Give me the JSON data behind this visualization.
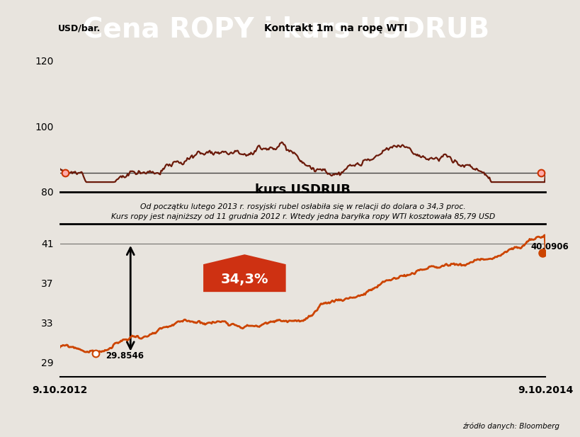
{
  "title": "Cena ROPY i kurs USDRUB",
  "title_bg": "#c8c8c8",
  "title_color": "#ffffff",
  "subtitle_oil": "Kontrakt 1m  na ropę WTI",
  "ylabel_oil": "USD/bar.",
  "oil_ylim": [
    80,
    122
  ],
  "oil_yticks": [
    80,
    100,
    120
  ],
  "oil_color": "#6B1A0A",
  "oil_annotation_line": 85.79,
  "oil_annotation_text": "Kurs ropy jest najniższy od 11 grudnia 2012 r. Wtedy jedna baryłka ropy WTI kosztowała 85,79 USD",
  "rub_label": "kurs USDRUB",
  "rub_annotation_text": "Od początku lutego 2013 r. rosyjski rubel osłabiła się w relacji do dolara o 34,3 proc.",
  "rub_ylim": [
    27.5,
    43
  ],
  "rub_yticks": [
    29,
    33,
    37,
    41
  ],
  "rub_color": "#CC4400",
  "rub_min_value": 29.8546,
  "rub_max_value": 40.0906,
  "pct_label": "34,3%",
  "xlabel_left": "9.10.2012",
  "xlabel_right": "9.10.2014",
  "source": "źródło danych: Bloomberg",
  "bg_color": "#e8e4de",
  "n_points": 520
}
